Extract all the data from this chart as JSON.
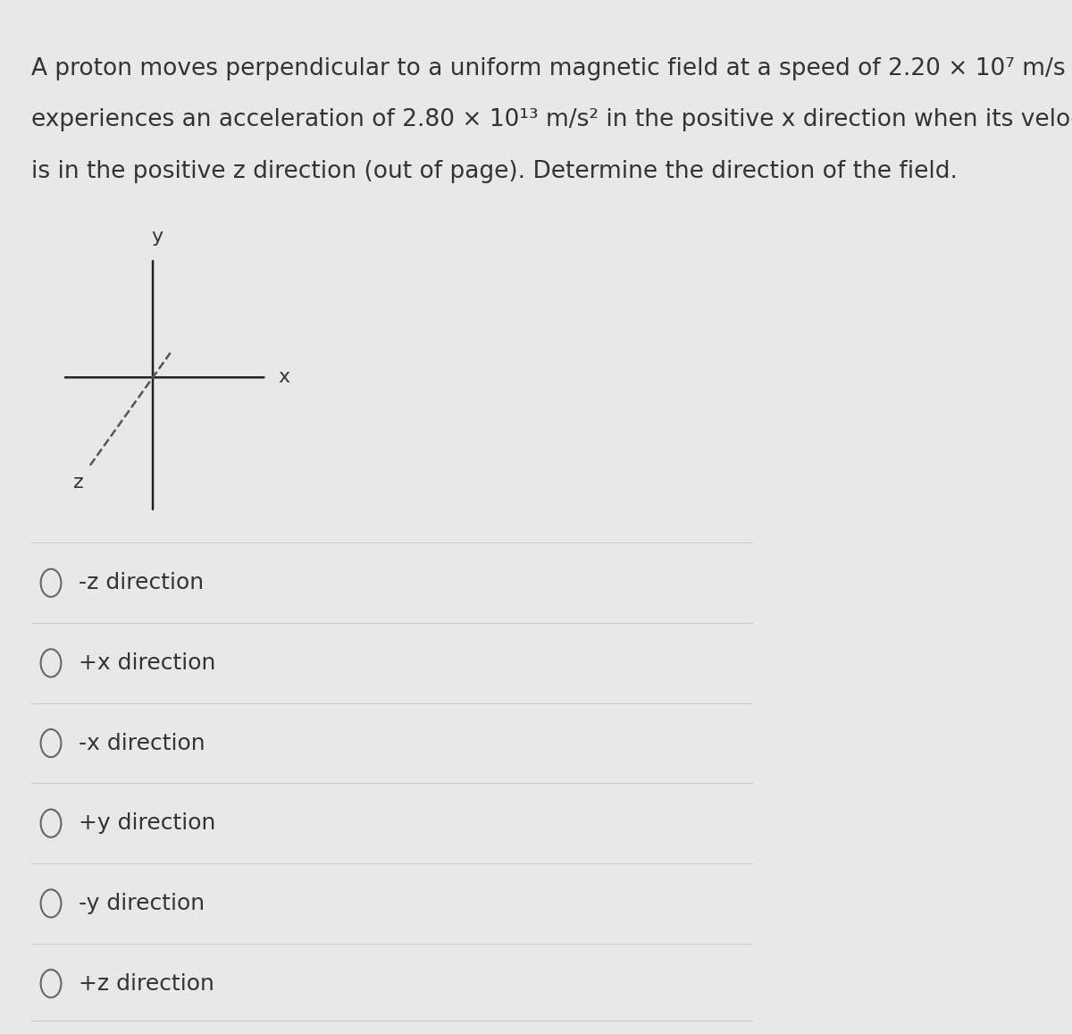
{
  "background_color": "#e8e8e8",
  "text_color": "#333333",
  "text_fontsize": 19,
  "options": [
    "-z direction",
    "+x direction",
    "-x direction",
    "+y direction",
    "-y direction",
    "+z direction"
  ],
  "option_fontsize": 18,
  "divider_color": "#cccccc",
  "option_text_color": "#333333",
  "axis_line_color": "#222222",
  "z_line_color": "#555555"
}
